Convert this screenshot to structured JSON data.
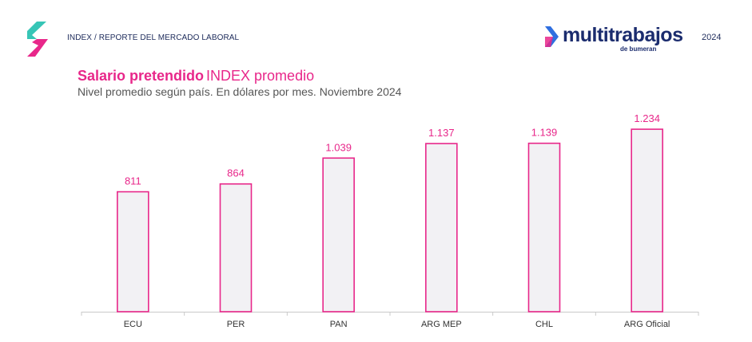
{
  "header": {
    "report_label": "INDEX / REPORTE DEL MERCADO LABORAL",
    "brand_name": "multitrabajos",
    "brand_sub": "de bumeran",
    "year": "2024",
    "logo_icon": "chevron-logo-icon"
  },
  "colors": {
    "accent": "#e8278a",
    "bar_fill": "#f2f1f4",
    "teal": "#37c5b6",
    "navy": "#1b2c6e",
    "blue": "#2f6fe0"
  },
  "chart_data": {
    "type": "bar",
    "title": "Salario pretendido",
    "title_suffix": "INDEX promedio",
    "subtitle": "Nivel promedio según país. En dólares por mes. Noviembre 2024",
    "categories": [
      "ECU",
      "PER",
      "PAN",
      "ARG MEP",
      "CHL",
      "ARG Oficial"
    ],
    "values": [
      811,
      864,
      1039,
      1137,
      1139,
      1234
    ],
    "value_labels": [
      "811",
      "864",
      "1.039",
      "1.137",
      "1.139",
      "1.234"
    ],
    "ylim": [
      0,
      1310
    ],
    "grid": false,
    "legend": "none"
  }
}
